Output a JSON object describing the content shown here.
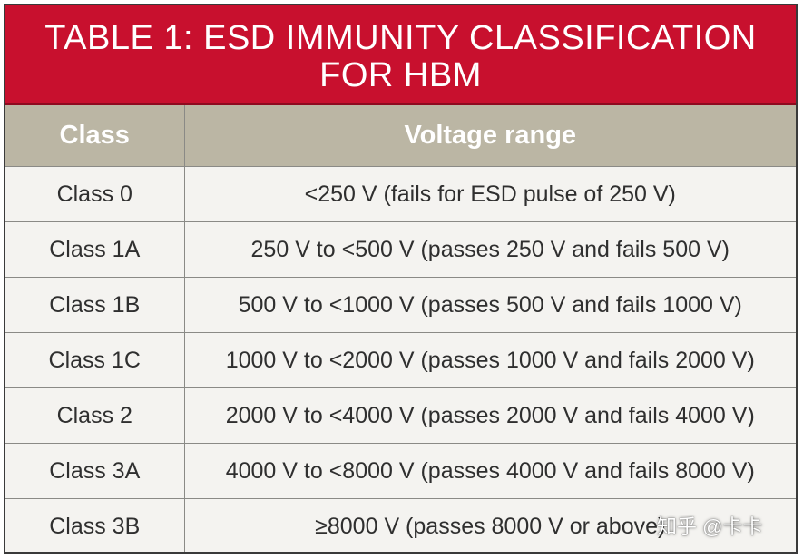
{
  "title": {
    "line1": "TABLE 1: ESD IMMUNITY CLASSIFICATION",
    "line2": "FOR HBM"
  },
  "table": {
    "headers": [
      "Class",
      "Voltage range"
    ],
    "rows": [
      {
        "class": "Class 0",
        "range": "<250 V (fails for ESD pulse of 250 V)"
      },
      {
        "class": "Class 1A",
        "range": "250 V to <500 V (passes 250 V and fails 500 V)"
      },
      {
        "class": "Class 1B",
        "range": "500 V to <1000 V (passes 500 V and fails 1000 V)"
      },
      {
        "class": "Class 1C",
        "range": "1000 V to <2000 V (passes 1000 V and fails 2000 V)"
      },
      {
        "class": "Class 2",
        "range": "2000 V to <4000 V (passes 2000 V and fails 4000 V)"
      },
      {
        "class": "Class 3A",
        "range": "4000 V to <8000 V (passes 4000 V and fails 8000 V)"
      },
      {
        "class": "Class 3B",
        "range": "≥8000 V (passes 8000 V or above)"
      }
    ]
  },
  "watermark": "知乎 @卡卡",
  "colors": {
    "title_bg": "#c8102e",
    "header_bg": "#bbb6a4",
    "cell_bg": "#f4f3f0"
  }
}
